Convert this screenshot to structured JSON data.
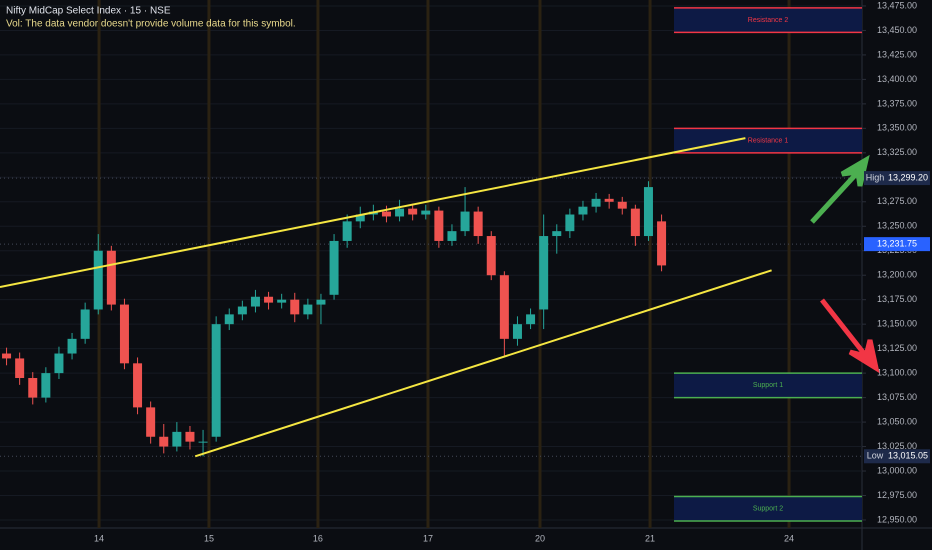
{
  "chart_data": {
    "type": "candlestick",
    "title": "Nifty MidCap Select Index · 15 · NSE",
    "subtitle": "Vol: The data vendor doesn't provide volume data for this symbol.",
    "x": [
      0.5,
      1.5,
      2.5,
      3.5,
      4.5,
      5.5,
      6.5,
      7.5,
      8.5,
      9.5,
      10.5,
      11.5,
      12.5,
      13.5,
      14.5,
      15.5,
      16.5,
      17.5,
      18.5,
      19.5,
      20.5,
      21.5,
      22.5,
      23.5,
      24.5,
      25.5,
      26.5,
      27.5,
      28.5,
      29.5,
      30.5,
      31.5,
      32.5,
      33.5,
      34.5,
      35.5,
      36.5,
      37.5,
      38.5,
      39.5,
      40.5,
      41.5,
      42.5,
      43.5,
      44.5,
      45.5,
      46.5,
      47.5,
      48.5,
      49.5,
      50.5
    ],
    "open": [
      13120,
      13115,
      13095,
      13075,
      13100,
      13120,
      13135,
      13165,
      13225,
      13170,
      13110,
      13065,
      13035,
      13025,
      13040,
      13030,
      13035,
      13150,
      13160,
      13168,
      13178,
      13172,
      13175,
      13160,
      13170,
      13180,
      13235,
      13255,
      13262,
      13265,
      13260,
      13268,
      13262,
      13266,
      13235,
      13245,
      13265,
      13240,
      13200,
      13135,
      13150,
      13165,
      13240,
      13245,
      13262,
      13270,
      13278,
      13275,
      13268,
      13240,
      13255
    ],
    "high": [
      13126,
      13121,
      13101,
      13106,
      13127,
      13141,
      13172,
      13242,
      13230,
      13176,
      13116,
      13071,
      13048,
      13050,
      13046,
      13042,
      13158,
      13166,
      13174,
      13185,
      13183,
      13181,
      13182,
      13176,
      13181,
      13242,
      13262,
      13270,
      13272,
      13271,
      13277,
      13273,
      13272,
      13270,
      13252,
      13290,
      13270,
      13245,
      13204,
      13158,
      13166,
      13262,
      13252,
      13268,
      13276,
      13284,
      13283,
      13280,
      13272,
      13296,
      13262
    ],
    "low": [
      13108,
      13088,
      13068,
      13070,
      13094,
      13114,
      13130,
      13160,
      13164,
      13104,
      13058,
      13028,
      13018,
      13020,
      13022,
      13015,
      13030,
      13144,
      13154,
      13162,
      13165,
      13166,
      13152,
      13155,
      13150,
      13175,
      13228,
      13248,
      13256,
      13254,
      13255,
      13256,
      13257,
      13228,
      13230,
      13240,
      13232,
      13195,
      13118,
      13128,
      13145,
      13145,
      13222,
      13238,
      13256,
      13264,
      13268,
      13262,
      13230,
      13235,
      13204
    ],
    "close": [
      13115,
      13095,
      13075,
      13100,
      13120,
      13135,
      13165,
      13225,
      13170,
      13110,
      13065,
      13035,
      13025,
      13040,
      13030,
      13030,
      13150,
      13160,
      13168,
      13178,
      13172,
      13175,
      13160,
      13170,
      13175,
      13235,
      13255,
      13262,
      13265,
      13260,
      13268,
      13262,
      13266,
      13235,
      13245,
      13265,
      13240,
      13200,
      13135,
      13150,
      13160,
      13240,
      13245,
      13262,
      13270,
      13278,
      13275,
      13268,
      13240,
      13290,
      13210
    ],
    "up_color": "#26a69a",
    "down_color": "#ef5350",
    "xlim": [
      0,
      65.8
    ],
    "xticks": [
      {
        "value": 7.56,
        "label": "14"
      },
      {
        "value": 15.95,
        "label": "15"
      },
      {
        "value": 24.27,
        "label": "16"
      },
      {
        "value": 32.67,
        "label": "17"
      },
      {
        "value": 41.22,
        "label": "20"
      },
      {
        "value": 49.62,
        "label": "21"
      },
      {
        "value": 60.23,
        "label": "24"
      }
    ],
    "ylim": [
      12941.8,
      13481.1
    ],
    "yticks": [
      {
        "value": 12950,
        "label": "12,950.00"
      },
      {
        "value": 12975,
        "label": "12,975.00"
      },
      {
        "value": 13000,
        "label": "13,000.00"
      },
      {
        "value": 13025,
        "label": "13,025.00"
      },
      {
        "value": 13050,
        "label": "13,050.00"
      },
      {
        "value": 13075,
        "label": "13,075.00"
      },
      {
        "value": 13100,
        "label": "13,100.00"
      },
      {
        "value": 13125,
        "label": "13,125.00"
      },
      {
        "value": 13150,
        "label": "13,150.00"
      },
      {
        "value": 13175,
        "label": "13,175.00"
      },
      {
        "value": 13200,
        "label": "13,200.00"
      },
      {
        "value": 13225,
        "label": "13,225.00"
      },
      {
        "value": 13250,
        "label": "13,250.00"
      },
      {
        "value": 13275,
        "label": "13,275.00"
      },
      {
        "value": 13300,
        "label": "13,300.00"
      },
      {
        "value": 13325,
        "label": "13,325.00"
      },
      {
        "value": 13350,
        "label": "13,350.00"
      },
      {
        "value": 13375,
        "label": "13,375.00"
      },
      {
        "value": 13400,
        "label": "13,400.00"
      },
      {
        "value": 13425,
        "label": "13,425.00"
      },
      {
        "value": 13450,
        "label": "13,450.00"
      },
      {
        "value": 13475,
        "label": "13,475.00"
      }
    ],
    "grid": true,
    "zones": [
      {
        "label": "Resistance 2",
        "bottom": 13448,
        "top": 13473,
        "color": "#f23645"
      },
      {
        "label": "Resistance 1",
        "bottom": 13325,
        "top": 13350,
        "color": "#f23645"
      },
      {
        "label": "Support 1",
        "bottom": 13075,
        "top": 13100,
        "color": "#4caf50"
      },
      {
        "label": "Support 2",
        "bottom": 12949,
        "top": 12974,
        "color": "#4caf50"
      }
    ],
    "trendlines": [
      {
        "x": [
          0,
          56.9
        ],
        "y": [
          13188,
          13340
        ],
        "color": "#f5e642"
      },
      {
        "x": [
          14.9,
          58.9
        ],
        "y": [
          13015,
          13205
        ],
        "color": "#f5e642"
      }
    ],
    "price_markers": [
      {
        "label": "High",
        "value": 13299.2,
        "value_label": "13,299.20",
        "color": "#1e2a4a"
      },
      {
        "value": 13231.75,
        "value_label": "13,231.75",
        "color": "#2962ff"
      },
      {
        "label": "Low",
        "value": 13015.05,
        "value_label": "13,015.05",
        "color": "#1e2a4a"
      }
    ]
  }
}
